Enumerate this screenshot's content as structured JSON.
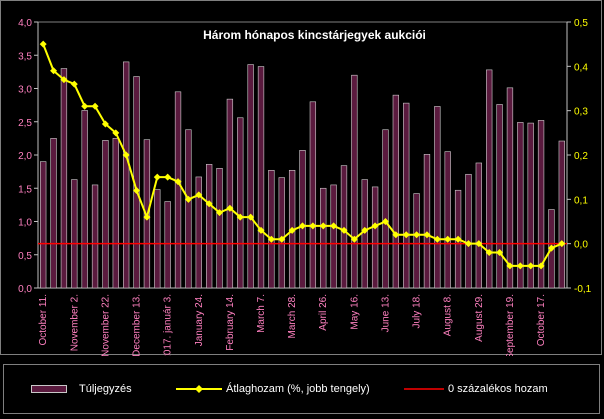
{
  "chart_data": {
    "type": "bar",
    "title": "Három hónapos kincstárjegyek aukciói",
    "categories": [
      "October 11.",
      "",
      "",
      "November 2.",
      "",
      "",
      "November 22.",
      "",
      "",
      "December 13.",
      "",
      "",
      "2017. január 3.",
      "",
      "",
      "January 24.",
      "",
      "",
      "February 14.",
      "",
      "",
      "March 7.",
      "",
      "",
      "March 28.",
      "",
      "",
      "April 26.",
      "",
      "",
      "May 16.",
      "",
      "",
      "June 13.",
      "",
      "",
      "July 18.",
      "",
      "",
      "August 8.",
      "",
      "",
      "August 29.",
      "",
      "",
      "September 19.",
      "",
      "",
      "October 17.",
      "",
      ""
    ],
    "left_axis": {
      "min": 0,
      "max": 4,
      "step": 0.5,
      "tick_labels": [
        "0,0",
        "0,5",
        "1,0",
        "1,5",
        "2,0",
        "2,5",
        "3,0",
        "3,5",
        "4,0"
      ]
    },
    "right_axis": {
      "min": -0.1,
      "max": 0.5,
      "step": 0.1,
      "tick_labels": [
        "-0,1",
        "0,0",
        "0,1",
        "0,2",
        "0,3",
        "0,4",
        "0,5"
      ]
    },
    "series": [
      {
        "name": "Túljegyzés",
        "type": "bar",
        "axis": "left",
        "color": "#5a1a3e",
        "values": [
          1.9,
          2.25,
          3.3,
          1.63,
          2.67,
          1.55,
          2.22,
          2.25,
          3.4,
          3.18,
          2.23,
          1.48,
          1.3,
          2.95,
          2.38,
          1.67,
          1.86,
          1.8,
          2.84,
          2.56,
          3.36,
          3.33,
          1.77,
          1.66,
          1.77,
          2.07,
          2.8,
          1.5,
          1.55,
          1.84,
          3.2,
          1.63,
          1.52,
          2.38,
          2.9,
          2.78,
          1.42,
          2.01,
          2.73,
          2.05,
          1.47,
          1.71,
          1.88,
          3.28,
          2.76,
          3.01,
          2.49,
          2.48,
          2.52,
          1.18,
          2.21
        ]
      },
      {
        "name": "Átlaghozam (%, jobb tengely)",
        "type": "line",
        "axis": "right",
        "color": "#ffff00",
        "values": [
          0.45,
          0.39,
          0.37,
          0.36,
          0.31,
          0.31,
          0.27,
          0.25,
          0.2,
          0.12,
          0.06,
          0.15,
          0.15,
          0.14,
          0.1,
          0.11,
          0.09,
          0.07,
          0.08,
          0.06,
          0.06,
          0.03,
          0.01,
          0.01,
          0.03,
          0.04,
          0.04,
          0.04,
          0.04,
          0.03,
          0.01,
          0.03,
          0.04,
          0.05,
          0.02,
          0.02,
          0.02,
          0.02,
          0.01,
          0.01,
          0.01,
          0.0,
          0.0,
          -0.02,
          -0.02,
          -0.05,
          -0.05,
          -0.05,
          -0.05,
          -0.01,
          0.0
        ]
      },
      {
        "name": "0 százalékos hozam",
        "type": "line",
        "axis": "right",
        "color": "#ff0000",
        "constant": 0
      }
    ]
  },
  "legend": {
    "bar_label": "Túljegyzés",
    "yield_label": "Átlaghozam (%, jobb tengely)",
    "zero_label": "0 százalékos hozam"
  }
}
